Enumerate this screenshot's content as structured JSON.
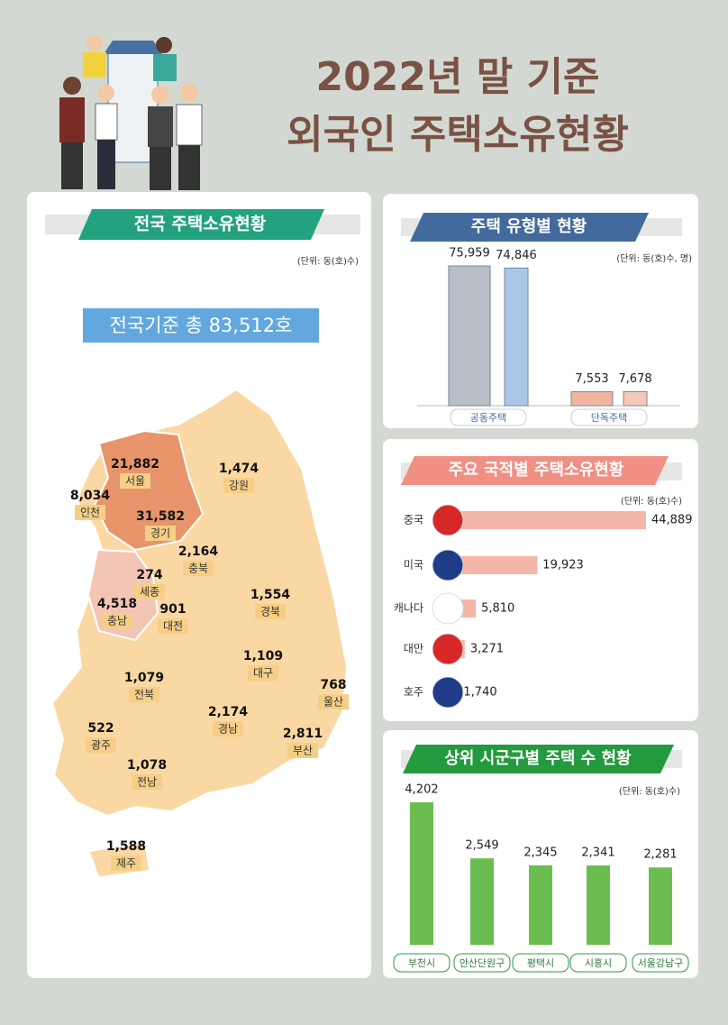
{
  "header": {
    "title_line1": "2022년 말 기준",
    "title_line2": "외국인 주택소유현황"
  },
  "national": {
    "title": "전국 주택소유현황",
    "unit": "(단위: 동(호)수)",
    "total": "전국기준 총 83,512호",
    "regions": [
      {
        "name": "서울",
        "value": "21,882"
      },
      {
        "name": "인천",
        "value": "8,034"
      },
      {
        "name": "경기",
        "value": "31,582"
      },
      {
        "name": "강원",
        "value": "1,474"
      },
      {
        "name": "충북",
        "value": "2,164"
      },
      {
        "name": "세종",
        "value": "274"
      },
      {
        "name": "충남",
        "value": "4,518"
      },
      {
        "name": "대전",
        "value": "901"
      },
      {
        "name": "경북",
        "value": "1,554"
      },
      {
        "name": "대구",
        "value": "1,109"
      },
      {
        "name": "울산",
        "value": "768"
      },
      {
        "name": "전북",
        "value": "1,079"
      },
      {
        "name": "경남",
        "value": "2,174"
      },
      {
        "name": "부산",
        "value": "2,811"
      },
      {
        "name": "광주",
        "value": "522"
      },
      {
        "name": "전남",
        "value": "1,078"
      },
      {
        "name": "제주",
        "value": "1,588"
      }
    ]
  },
  "chart_data": [
    {
      "type": "bar",
      "title": "주택 유형별 현황",
      "unit": "(단위: 동(호)수, 명)",
      "categories": [
        "공동주택",
        "단독주택"
      ],
      "series": [
        {
          "colors": [
            "#b9bfc7",
            "#f2b4a0"
          ],
          "values": [
            75959,
            7553
          ],
          "value_labels": [
            "75,959",
            "7,553"
          ]
        },
        {
          "colors": [
            "#a9c8e8",
            "#f5c9b5"
          ],
          "values": [
            74846,
            7678
          ],
          "value_labels": [
            "74,846",
            "7,678"
          ]
        }
      ]
    },
    {
      "type": "barh",
      "title": "주요 국적별 주택소유현황",
      "unit": "(단위: 동(호)수)",
      "categories": [
        "중국",
        "미국",
        "캐나다",
        "대만",
        "호주"
      ],
      "values": [
        44889,
        19923,
        5810,
        3271,
        1740
      ],
      "value_labels": [
        "44,889",
        "19,923",
        "5,810",
        "3,271",
        "1,740"
      ],
      "color": "#f4b6a8"
    },
    {
      "type": "bar",
      "title": "상위 시군구별 주택 수 현황",
      "unit": "(단위: 동(호)수)",
      "categories": [
        "부천시",
        "안산단원구",
        "평택시",
        "시흥시",
        "서울강남구"
      ],
      "values": [
        4202,
        2549,
        2345,
        2341,
        2281
      ],
      "value_labels": [
        "4,202",
        "2,549",
        "2,345",
        "2,341",
        "2,281"
      ],
      "color": "#6cbd4f"
    }
  ]
}
